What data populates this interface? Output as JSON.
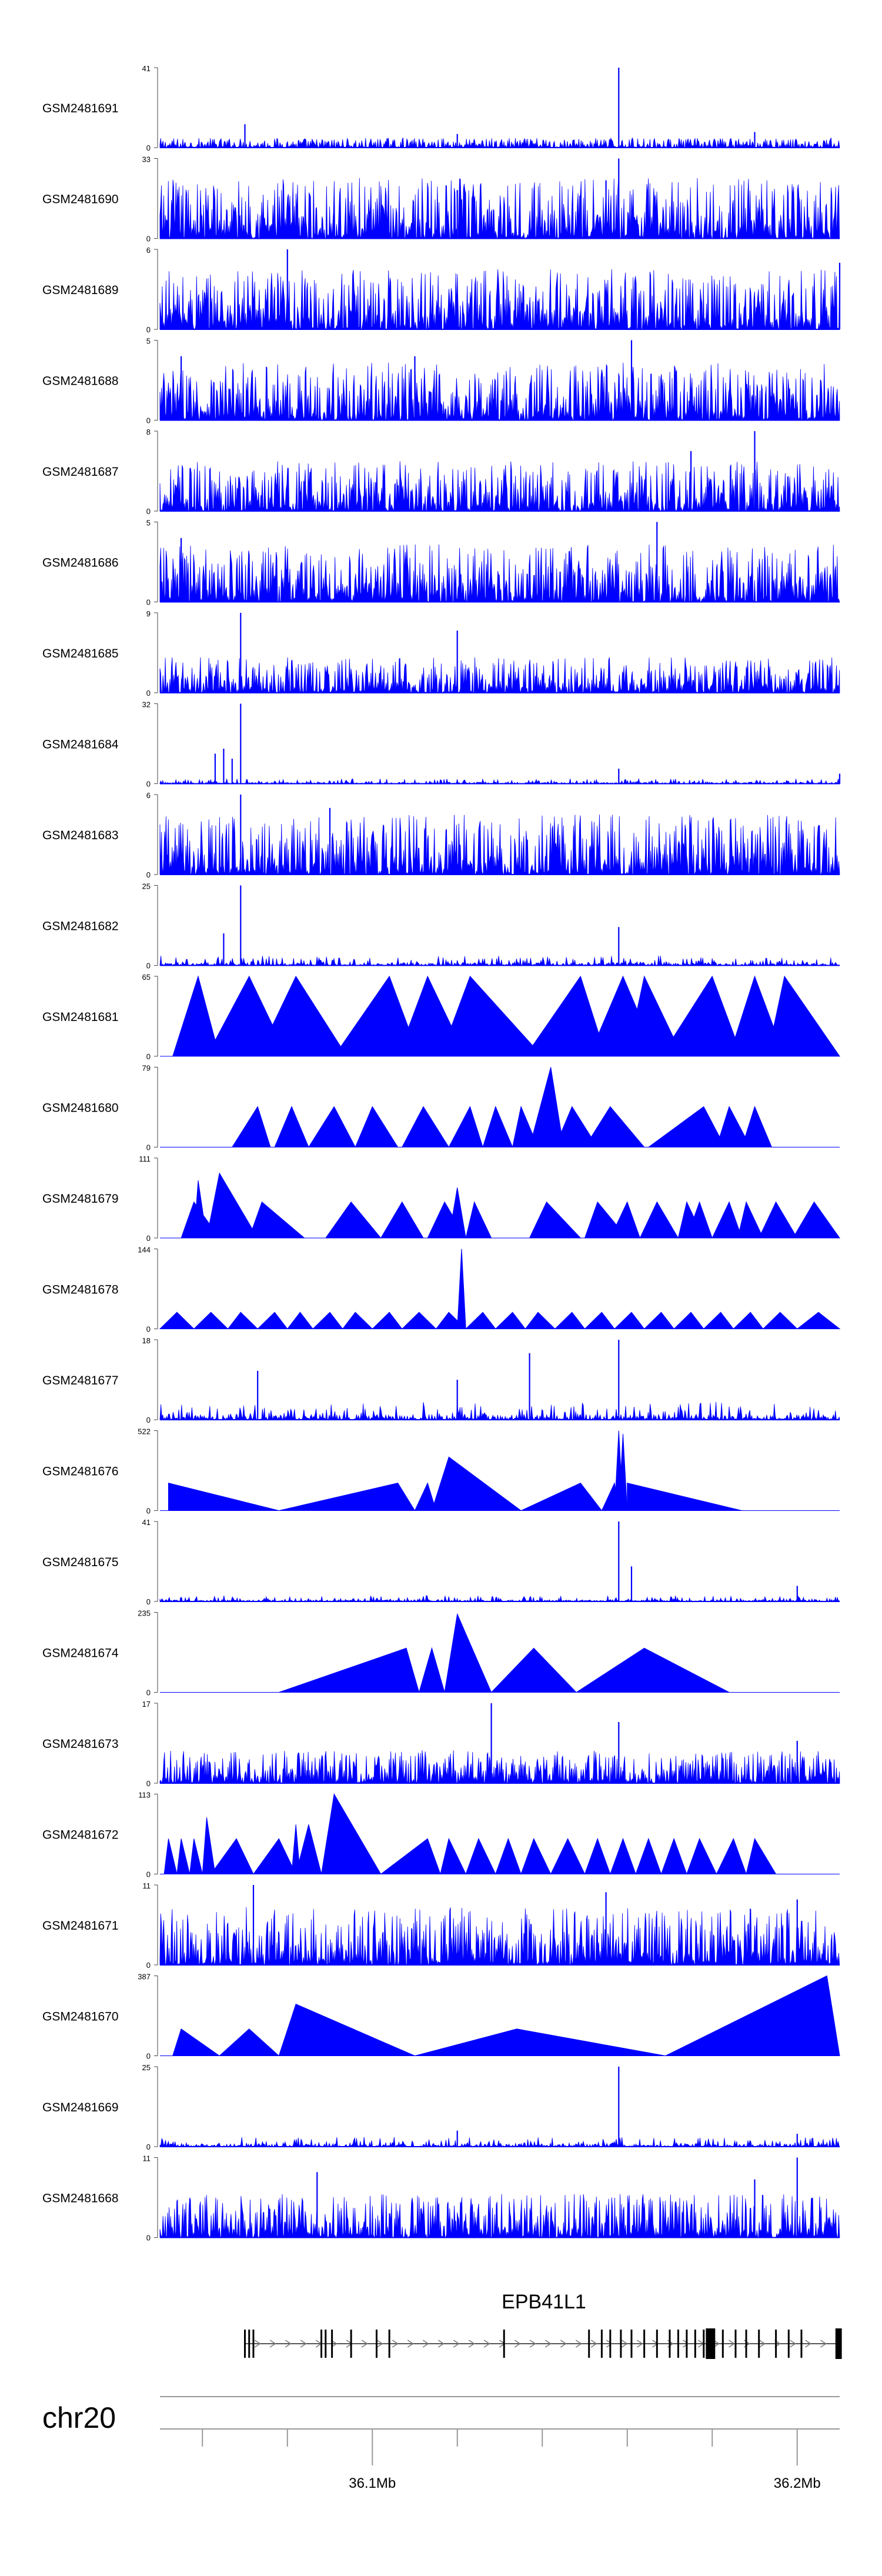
{
  "chart_data": {
    "type": "area",
    "title": "",
    "chromosome": "chr20",
    "gene": {
      "name": "EPB41L1",
      "strand": "+"
    },
    "x_axis": {
      "unit": "Mb",
      "range": [
        36.05,
        36.21
      ],
      "major_ticks": [
        {
          "value": 36.1,
          "label": "36.1Mb"
        },
        {
          "value": 36.2,
          "label": "36.2Mb"
        }
      ],
      "minor_ticks": [
        36.06,
        36.08,
        36.12,
        36.14,
        36.16,
        36.18
      ]
    },
    "tracks": [
      {
        "name": "GSM2481691",
        "ymax": "41",
        "ymin": "0",
        "ymax_value": 41,
        "style": "dense",
        "noise": 5,
        "peaks": [
          [
            36.158,
            41
          ],
          [
            36.07,
            12
          ],
          [
            36.19,
            8
          ],
          [
            36.12,
            7
          ]
        ]
      },
      {
        "name": "GSM2481690",
        "ymax": "33",
        "ymin": "0",
        "ymax_value": 33,
        "style": "dense",
        "noise": 25,
        "peaks": [
          [
            36.158,
            33
          ],
          [
            36.155,
            24
          ],
          [
            36.12,
            20
          ]
        ]
      },
      {
        "name": "GSM2481689",
        "ymax": "6",
        "ymin": "0",
        "ymax_value": 6,
        "style": "dense",
        "noise": 4.5,
        "peaks": [
          [
            36.08,
            6
          ],
          [
            36.21,
            5
          ]
        ]
      },
      {
        "name": "GSM2481688",
        "ymax": "5",
        "ymin": "0",
        "ymax_value": 5,
        "style": "dense",
        "noise": 3.6,
        "peaks": [
          [
            36.161,
            5
          ],
          [
            36.055,
            4
          ],
          [
            36.11,
            4
          ]
        ]
      },
      {
        "name": "GSM2481687",
        "ymax": "8",
        "ymin": "0",
        "ymax_value": 8,
        "style": "dense",
        "noise": 5,
        "peaks": [
          [
            36.19,
            8
          ],
          [
            36.175,
            6
          ]
        ]
      },
      {
        "name": "GSM2481686",
        "ymax": "5",
        "ymin": "0",
        "ymax_value": 5,
        "style": "dense",
        "noise": 3.6,
        "peaks": [
          [
            36.167,
            5
          ],
          [
            36.055,
            4
          ]
        ]
      },
      {
        "name": "GSM2481685",
        "ymax": "9",
        "ymin": "0",
        "ymax_value": 9,
        "style": "dense",
        "noise": 4,
        "peaks": [
          [
            36.069,
            9
          ],
          [
            36.12,
            7
          ]
        ]
      },
      {
        "name": "GSM2481684",
        "ymax": "32",
        "ymin": "0",
        "ymax_value": 32,
        "style": "sparse",
        "noise": 2,
        "peaks": [
          [
            36.069,
            32
          ],
          [
            36.065,
            14
          ],
          [
            36.063,
            12
          ],
          [
            36.067,
            10
          ],
          [
            36.158,
            6
          ],
          [
            36.21,
            4
          ]
        ]
      },
      {
        "name": "GSM2481683",
        "ymax": "6",
        "ymin": "0",
        "ymax_value": 6,
        "style": "dense",
        "noise": 4.5,
        "peaks": [
          [
            36.069,
            6
          ],
          [
            36.09,
            5
          ]
        ]
      },
      {
        "name": "GSM2481682",
        "ymax": "25",
        "ymin": "0",
        "ymax_value": 25,
        "style": "sparse",
        "noise": 3,
        "peaks": [
          [
            36.069,
            25
          ],
          [
            36.065,
            10
          ],
          [
            36.158,
            12
          ]
        ]
      },
      {
        "name": "GSM2481681",
        "ymax": "65",
        "ymin": "0",
        "ymax_value": 65,
        "style": "triangles",
        "triangles": [
          [
            36.053,
            36.059,
            36.064,
            65
          ],
          [
            36.061,
            36.071,
            36.08,
            65
          ],
          [
            36.073,
            36.082,
            36.094,
            65
          ],
          [
            36.091,
            36.104,
            36.111,
            65
          ],
          [
            36.106,
            36.113,
            36.122,
            65
          ],
          [
            36.116,
            36.123,
            36.14,
            65
          ],
          [
            36.136,
            36.149,
            36.155,
            65
          ],
          [
            36.151,
            36.159,
            36.167,
            65
          ],
          [
            36.16,
            36.164,
            36.173,
            65
          ],
          [
            36.168,
            36.18,
            36.187,
            65
          ],
          [
            36.184,
            36.19,
            36.197,
            65
          ],
          [
            36.193,
            36.197,
            36.21,
            65
          ]
        ]
      },
      {
        "name": "GSM2481680",
        "ymax": "79",
        "ymin": "0",
        "ymax_value": 79,
        "style": "triangles",
        "triangles": [
          [
            36.067,
            36.073,
            36.076,
            40
          ],
          [
            36.077,
            36.081,
            36.085,
            40
          ],
          [
            36.085,
            36.091,
            36.096,
            40
          ],
          [
            36.096,
            36.1,
            36.106,
            40
          ],
          [
            36.107,
            36.112,
            36.118,
            40
          ],
          [
            36.118,
            36.123,
            36.126,
            40
          ],
          [
            36.126,
            36.129,
            36.133,
            40
          ],
          [
            36.133,
            36.135,
            36.139,
            40
          ],
          [
            36.137,
            36.142,
            36.145,
            79
          ],
          [
            36.143,
            36.147,
            36.153,
            40
          ],
          [
            36.15,
            36.156,
            36.164,
            40
          ],
          [
            36.165,
            36.178,
            36.183,
            40
          ],
          [
            36.181,
            36.184,
            36.189,
            40
          ],
          [
            36.187,
            36.19,
            36.194,
            40
          ]
        ]
      },
      {
        "name": "GSM2481679",
        "ymax": "111",
        "ymin": "0",
        "ymax_value": 111,
        "style": "triangles",
        "triangles": [
          [
            36.055,
            36.058,
            36.064,
            50
          ],
          [
            36.058,
            36.059,
            36.061,
            80
          ],
          [
            36.061,
            36.064,
            36.073,
            90
          ],
          [
            36.071,
            36.074,
            36.084,
            50
          ],
          [
            36.089,
            36.095,
            36.102,
            50
          ],
          [
            36.102,
            36.107,
            36.112,
            50
          ],
          [
            36.113,
            36.117,
            36.122,
            50
          ],
          [
            36.122,
            36.124,
            36.128,
            50
          ],
          [
            36.118,
            36.12,
            36.122,
            70
          ],
          [
            36.137,
            36.141,
            36.149,
            50
          ],
          [
            36.15,
            36.153,
            36.16,
            50
          ],
          [
            36.156,
            36.16,
            36.163,
            50
          ],
          [
            36.163,
            36.167,
            36.172,
            50
          ],
          [
            36.172,
            36.174,
            36.178,
            50
          ],
          [
            36.174,
            36.177,
            36.18,
            50
          ],
          [
            36.18,
            36.184,
            36.187,
            50
          ],
          [
            36.186,
            36.188,
            36.192,
            50
          ],
          [
            36.191,
            36.195,
            36.2,
            50
          ],
          [
            36.199,
            36.204,
            36.21,
            50
          ]
        ]
      },
      {
        "name": "GSM2481678",
        "ymax": "144",
        "ymin": "0",
        "ymax_value": 144,
        "style": "triangles",
        "triangles": [
          [
            36.05,
            36.054,
            36.058,
            30
          ],
          [
            36.058,
            36.062,
            36.066,
            30
          ],
          [
            36.066,
            36.069,
            36.073,
            30
          ],
          [
            36.073,
            36.077,
            36.08,
            30
          ],
          [
            36.08,
            36.083,
            36.086,
            30
          ],
          [
            36.086,
            36.09,
            36.093,
            30
          ],
          [
            36.093,
            36.096,
            36.1,
            30
          ],
          [
            36.1,
            36.104,
            36.107,
            30
          ],
          [
            36.107,
            36.111,
            36.115,
            30
          ],
          [
            36.115,
            36.118,
            36.122,
            30
          ],
          [
            36.12,
            36.121,
            36.122,
            144
          ],
          [
            36.122,
            36.126,
            36.129,
            30
          ],
          [
            36.129,
            36.133,
            36.136,
            30
          ],
          [
            36.136,
            36.139,
            36.143,
            30
          ],
          [
            36.143,
            36.147,
            36.15,
            30
          ],
          [
            36.15,
            36.154,
            36.157,
            30
          ],
          [
            36.157,
            36.161,
            36.164,
            30
          ],
          [
            36.164,
            36.168,
            36.171,
            30
          ],
          [
            36.171,
            36.175,
            36.178,
            30
          ],
          [
            36.178,
            36.182,
            36.185,
            30
          ],
          [
            36.185,
            36.189,
            36.192,
            30
          ],
          [
            36.192,
            36.196,
            36.2,
            30
          ],
          [
            36.2,
            36.205,
            36.21,
            30
          ]
        ]
      },
      {
        "name": "GSM2481677",
        "ymax": "18",
        "ymin": "0",
        "ymax_value": 18,
        "style": "sparse",
        "noise": 4,
        "peaks": [
          [
            36.158,
            18
          ],
          [
            36.137,
            15
          ],
          [
            36.073,
            11
          ],
          [
            36.12,
            9
          ]
        ]
      },
      {
        "name": "GSM2481676",
        "ymax": "522",
        "ymin": "0",
        "ymax_value": 522,
        "style": "triangles",
        "triangles": [
          [
            36.052,
            36.052,
            36.078,
            180
          ],
          [
            36.078,
            36.106,
            36.11,
            180
          ],
          [
            36.11,
            36.113,
            36.115,
            180
          ],
          [
            36.114,
            36.118,
            36.135,
            350
          ],
          [
            36.135,
            36.149,
            36.154,
            180
          ],
          [
            36.154,
            36.157,
            36.158,
            180
          ],
          [
            36.157,
            36.158,
            36.159,
            522
          ],
          [
            36.158,
            36.159,
            36.16,
            500
          ],
          [
            36.16,
            36.16,
            36.187,
            180
          ]
        ]
      },
      {
        "name": "GSM2481675",
        "ymax": "41",
        "ymin": "0",
        "ymax_value": 41,
        "style": "sparse",
        "noise": 3,
        "peaks": [
          [
            36.158,
            41
          ],
          [
            36.161,
            18
          ],
          [
            36.2,
            8
          ]
        ]
      },
      {
        "name": "GSM2481674",
        "ymax": "235",
        "ymin": "0",
        "ymax_value": 235,
        "style": "triangles",
        "triangles": [
          [
            36.078,
            36.108,
            36.111,
            130
          ],
          [
            36.111,
            36.114,
            36.117,
            130
          ],
          [
            36.117,
            36.12,
            36.128,
            230
          ],
          [
            36.128,
            36.138,
            36.148,
            130
          ],
          [
            36.148,
            36.164,
            36.184,
            130
          ]
        ]
      },
      {
        "name": "GSM2481673",
        "ymax": "17",
        "ymin": "0",
        "ymax_value": 17,
        "style": "dense",
        "noise": 7,
        "peaks": [
          [
            36.128,
            17
          ],
          [
            36.158,
            13
          ],
          [
            36.2,
            9
          ]
        ]
      },
      {
        "name": "GSM2481672",
        "ymax": "113",
        "ymin": "0",
        "ymax_value": 113,
        "style": "triangles",
        "triangles": [
          [
            36.051,
            36.052,
            36.054,
            50
          ],
          [
            36.054,
            36.055,
            36.057,
            50
          ],
          [
            36.057,
            36.058,
            36.06,
            50
          ],
          [
            36.06,
            36.061,
            36.063,
            80
          ],
          [
            36.062,
            36.068,
            36.072,
            50
          ],
          [
            36.072,
            36.078,
            36.082,
            50
          ],
          [
            36.081,
            36.082,
            36.083,
            70
          ],
          [
            36.082,
            36.085,
            36.088,
            70
          ],
          [
            36.088,
            36.091,
            36.102,
            113
          ],
          [
            36.102,
            36.113,
            36.116,
            50
          ],
          [
            36.116,
            36.118,
            36.122,
            50
          ],
          [
            36.122,
            36.125,
            36.129,
            50
          ],
          [
            36.129,
            36.132,
            36.135,
            50
          ],
          [
            36.135,
            36.138,
            36.142,
            50
          ],
          [
            36.142,
            36.146,
            36.15,
            50
          ],
          [
            36.15,
            36.153,
            36.156,
            50
          ],
          [
            36.156,
            36.159,
            36.162,
            50
          ],
          [
            36.162,
            36.165,
            36.168,
            50
          ],
          [
            36.168,
            36.171,
            36.174,
            50
          ],
          [
            36.174,
            36.177,
            36.181,
            50
          ],
          [
            36.181,
            36.185,
            36.188,
            50
          ],
          [
            36.188,
            36.19,
            36.195,
            50
          ]
        ]
      },
      {
        "name": "GSM2481671",
        "ymax": "11",
        "ymin": "0",
        "ymax_value": 11,
        "style": "dense",
        "noise": 8,
        "peaks": [
          [
            36.072,
            11
          ],
          [
            36.155,
            10
          ],
          [
            36.2,
            9
          ]
        ]
      },
      {
        "name": "GSM2481670",
        "ymax": "387",
        "ymin": "0",
        "ymax_value": 387,
        "style": "triangles",
        "triangles": [
          [
            36.053,
            36.055,
            36.064,
            130
          ],
          [
            36.064,
            36.071,
            36.078,
            130
          ],
          [
            36.078,
            36.082,
            36.11,
            250
          ],
          [
            36.11,
            36.134,
            36.169,
            130
          ],
          [
            36.169,
            36.207,
            36.21,
            387
          ]
        ]
      },
      {
        "name": "GSM2481669",
        "ymax": "25",
        "ymin": "0",
        "ymax_value": 25,
        "style": "sparse",
        "noise": 3,
        "peaks": [
          [
            36.158,
            25
          ],
          [
            36.12,
            5
          ],
          [
            36.2,
            4
          ]
        ]
      },
      {
        "name": "GSM2481668",
        "ymax": "11",
        "ymin": "0",
        "ymax_value": 11,
        "style": "dense",
        "noise": 6,
        "peaks": [
          [
            36.2,
            11
          ],
          [
            36.087,
            9
          ],
          [
            36.19,
            8
          ]
        ]
      }
    ]
  }
}
